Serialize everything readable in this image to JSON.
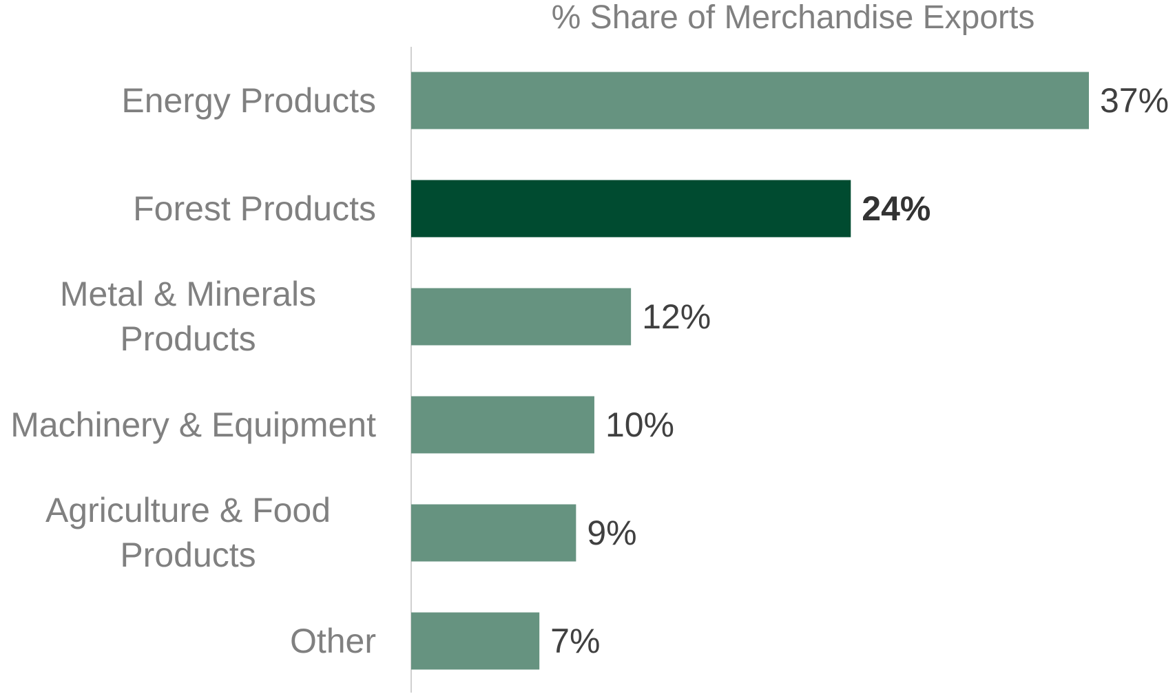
{
  "chart_data": {
    "type": "barh",
    "title": "% Share of Merchandise Exports",
    "categories": [
      "Energy Products",
      "Forest Products",
      "Metal & Minerals Products",
      "Machinery & Equipment",
      "Agriculture & Food Products",
      "Other"
    ],
    "values": [
      37,
      24,
      12,
      10,
      9,
      7
    ],
    "value_labels": [
      "37%",
      "24%",
      "12%",
      "10%",
      "9%",
      "7%"
    ],
    "colors": [
      "#669380",
      "#004b30",
      "#669380",
      "#669380",
      "#669380",
      "#669380"
    ]
  }
}
